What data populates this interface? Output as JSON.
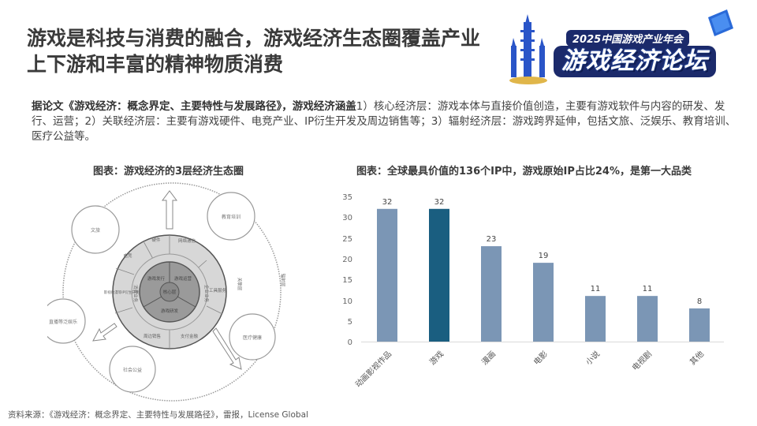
{
  "header": {
    "title": "游戏是科技与消费的融合，游戏经济生态圈覆盖产业上下游和丰富的精神物质消费",
    "logo": {
      "subtitle": "2025中国游戏产业年会",
      "main": "游戏经济论坛",
      "icons": [
        "pagoda-icon",
        "laptop-icon"
      ]
    }
  },
  "intro": {
    "bold_part": "据论文《游戏经济：概念界定、主要特性与发展路径》，游戏经济涵盖",
    "rest": "1）核心经济层：游戏本体与直接价值创造，主要有游戏软件与内容的研发、发行、运营；2）关联经济层：主要有游戏硬件、电竞产业、IP衍生开发及周边销售等；3）辐射经济层：游戏跨界延伸，包括文旅、泛娱乐、教育培训、医疗公益等。"
  },
  "diagram": {
    "caption": "图表：游戏经济的3层经济生态圈",
    "core": "核心层",
    "core_segments": [
      "游戏发行",
      "游戏运营",
      "游戏研发"
    ],
    "middle_left": "消费业务",
    "middle_right": "企业业务",
    "outer_segments": [
      "硬件",
      "网络通信",
      "工具服务",
      "支付金融",
      "周边销售",
      "影视动漫等IP衍生开发",
      "电竞"
    ],
    "related_layer_label": "关联层",
    "radiation_layer_label": "辐射层",
    "satellites": [
      "文旅",
      "教育培训",
      "直播等泛娱乐",
      "医疗健康",
      "社会公益"
    ]
  },
  "chart_caption": "图表：全球最具价值的136个IP中，游戏原始IP占比24%，是第一大品类",
  "chart_data": {
    "type": "bar",
    "title": "全球最具价值的136个IP中，游戏原始IP占比24%，是第一大品类",
    "categories": [
      "动画影视作品",
      "游戏",
      "漫画",
      "电影",
      "小说",
      "电视剧",
      "其他"
    ],
    "values": [
      32,
      32,
      23,
      19,
      11,
      11,
      8
    ],
    "highlight_index": 1,
    "colors": {
      "default": "#7b96b5",
      "highlight": "#1a5e80"
    },
    "xlabel": "",
    "ylabel": "",
    "ylim": [
      0,
      35
    ],
    "yticks": [
      0,
      5,
      10,
      15,
      20,
      25,
      30,
      35
    ],
    "grid": false,
    "data_labels": true
  },
  "footer": {
    "source": "资料来源：《游戏经济：概念界定、主要特性与发展路径》，雷报，License Global"
  }
}
